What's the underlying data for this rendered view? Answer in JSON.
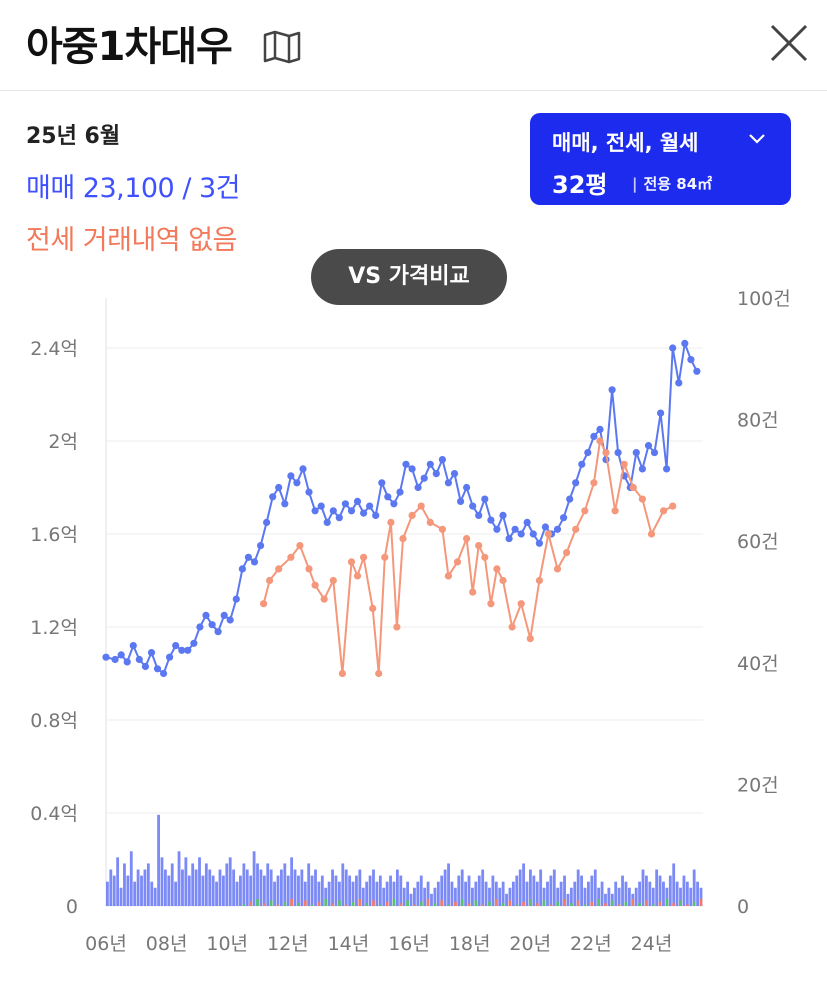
{
  "header": {
    "title": "아중1차대우",
    "map_icon": "map-icon",
    "close_icon": "close-icon"
  },
  "summary": {
    "period": "25년 6월",
    "sale": "매매 23,100 / 3건",
    "jeonse": "전세 거래내역 없음"
  },
  "filter": {
    "types": "매매, 전세, 월세",
    "size": "32평",
    "area": "전용 84㎡"
  },
  "vs_button": "VS 가격비교",
  "colors": {
    "sale": "#5b78f0",
    "jeonse": "#f4977b",
    "sale_bar": "#6d7df5",
    "jeonse_bar": "#f07c6a",
    "wolse_bar": "#5cc070",
    "accent": "#1d2bef"
  },
  "chart_data": {
    "type": "line",
    "x_labels": [
      "06년",
      "08년",
      "10년",
      "12년",
      "14년",
      "16년",
      "18년",
      "20년",
      "22년",
      "24년"
    ],
    "x_range": [
      2006,
      2025.7
    ],
    "y_left": {
      "ticks": [
        "0",
        "0.4억",
        "0.8억",
        "1.2억",
        "1.6억",
        "2억",
        "2.4억"
      ],
      "values": [
        0,
        0.4,
        0.8,
        1.2,
        1.6,
        2.0,
        2.4
      ],
      "range": [
        0,
        2.4
      ]
    },
    "y_right": {
      "ticks": [
        "0",
        "20건",
        "40건",
        "60건",
        "80건",
        "100건"
      ],
      "values": [
        0,
        20,
        40,
        60,
        80,
        100
      ],
      "range": [
        0,
        100
      ]
    },
    "series": [
      {
        "key": "sale",
        "points": [
          [
            2006.0,
            1.07
          ],
          [
            2006.3,
            1.06
          ],
          [
            2006.5,
            1.08
          ],
          [
            2006.7,
            1.05
          ],
          [
            2006.9,
            1.12
          ],
          [
            2007.1,
            1.06
          ],
          [
            2007.3,
            1.03
          ],
          [
            2007.5,
            1.09
          ],
          [
            2007.7,
            1.02
          ],
          [
            2007.9,
            1.0
          ],
          [
            2008.1,
            1.07
          ],
          [
            2008.3,
            1.12
          ],
          [
            2008.5,
            1.1
          ],
          [
            2008.7,
            1.1
          ],
          [
            2008.9,
            1.13
          ],
          [
            2009.1,
            1.2
          ],
          [
            2009.3,
            1.25
          ],
          [
            2009.5,
            1.21
          ],
          [
            2009.7,
            1.18
          ],
          [
            2009.9,
            1.25
          ],
          [
            2010.1,
            1.23
          ],
          [
            2010.3,
            1.32
          ],
          [
            2010.5,
            1.45
          ],
          [
            2010.7,
            1.5
          ],
          [
            2010.9,
            1.48
          ],
          [
            2011.1,
            1.55
          ],
          [
            2011.3,
            1.65
          ],
          [
            2011.5,
            1.76
          ],
          [
            2011.7,
            1.8
          ],
          [
            2011.9,
            1.73
          ],
          [
            2012.1,
            1.85
          ],
          [
            2012.3,
            1.82
          ],
          [
            2012.5,
            1.88
          ],
          [
            2012.7,
            1.78
          ],
          [
            2012.9,
            1.7
          ],
          [
            2013.1,
            1.72
          ],
          [
            2013.3,
            1.65
          ],
          [
            2013.5,
            1.7
          ],
          [
            2013.7,
            1.67
          ],
          [
            2013.9,
            1.73
          ],
          [
            2014.1,
            1.7
          ],
          [
            2014.3,
            1.74
          ],
          [
            2014.5,
            1.69
          ],
          [
            2014.7,
            1.72
          ],
          [
            2014.9,
            1.68
          ],
          [
            2015.1,
            1.82
          ],
          [
            2015.3,
            1.76
          ],
          [
            2015.5,
            1.73
          ],
          [
            2015.7,
            1.78
          ],
          [
            2015.9,
            1.9
          ],
          [
            2016.1,
            1.88
          ],
          [
            2016.3,
            1.8
          ],
          [
            2016.5,
            1.84
          ],
          [
            2016.7,
            1.9
          ],
          [
            2016.9,
            1.86
          ],
          [
            2017.1,
            1.92
          ],
          [
            2017.3,
            1.82
          ],
          [
            2017.5,
            1.86
          ],
          [
            2017.7,
            1.74
          ],
          [
            2017.9,
            1.8
          ],
          [
            2018.1,
            1.72
          ],
          [
            2018.3,
            1.68
          ],
          [
            2018.5,
            1.75
          ],
          [
            2018.7,
            1.66
          ],
          [
            2018.9,
            1.62
          ],
          [
            2019.1,
            1.68
          ],
          [
            2019.3,
            1.58
          ],
          [
            2019.5,
            1.62
          ],
          [
            2019.7,
            1.6
          ],
          [
            2019.9,
            1.65
          ],
          [
            2020.1,
            1.6
          ],
          [
            2020.3,
            1.56
          ],
          [
            2020.5,
            1.63
          ],
          [
            2020.7,
            1.6
          ],
          [
            2020.9,
            1.62
          ],
          [
            2021.1,
            1.67
          ],
          [
            2021.3,
            1.75
          ],
          [
            2021.5,
            1.82
          ],
          [
            2021.7,
            1.9
          ],
          [
            2021.9,
            1.95
          ],
          [
            2022.1,
            2.02
          ],
          [
            2022.3,
            2.05
          ],
          [
            2022.5,
            1.92
          ],
          [
            2022.7,
            2.22
          ],
          [
            2022.9,
            1.95
          ],
          [
            2023.1,
            1.85
          ],
          [
            2023.3,
            1.8
          ],
          [
            2023.5,
            1.95
          ],
          [
            2023.7,
            1.88
          ],
          [
            2023.9,
            1.98
          ],
          [
            2024.1,
            1.95
          ],
          [
            2024.3,
            2.12
          ],
          [
            2024.5,
            1.88
          ],
          [
            2024.7,
            2.4
          ],
          [
            2024.9,
            2.25
          ],
          [
            2025.1,
            2.42
          ],
          [
            2025.3,
            2.35
          ],
          [
            2025.5,
            2.3
          ]
        ]
      },
      {
        "key": "jeonse",
        "points": [
          [
            2011.2,
            1.3
          ],
          [
            2011.4,
            1.4
          ],
          [
            2011.7,
            1.45
          ],
          [
            2012.1,
            1.5
          ],
          [
            2012.4,
            1.55
          ],
          [
            2012.7,
            1.45
          ],
          [
            2012.9,
            1.38
          ],
          [
            2013.2,
            1.32
          ],
          [
            2013.5,
            1.4
          ],
          [
            2013.8,
            1.0
          ],
          [
            2014.1,
            1.48
          ],
          [
            2014.3,
            1.42
          ],
          [
            2014.5,
            1.5
          ],
          [
            2014.8,
            1.28
          ],
          [
            2015.0,
            1.0
          ],
          [
            2015.2,
            1.5
          ],
          [
            2015.4,
            1.65
          ],
          [
            2015.6,
            1.2
          ],
          [
            2015.8,
            1.58
          ],
          [
            2016.1,
            1.68
          ],
          [
            2016.4,
            1.72
          ],
          [
            2016.7,
            1.65
          ],
          [
            2017.1,
            1.62
          ],
          [
            2017.3,
            1.42
          ],
          [
            2017.6,
            1.48
          ],
          [
            2017.9,
            1.58
          ],
          [
            2018.1,
            1.35
          ],
          [
            2018.3,
            1.55
          ],
          [
            2018.5,
            1.5
          ],
          [
            2018.7,
            1.3
          ],
          [
            2018.9,
            1.45
          ],
          [
            2019.1,
            1.4
          ],
          [
            2019.4,
            1.2
          ],
          [
            2019.7,
            1.3
          ],
          [
            2020.0,
            1.15
          ],
          [
            2020.3,
            1.4
          ],
          [
            2020.6,
            1.6
          ],
          [
            2020.9,
            1.45
          ],
          [
            2021.2,
            1.52
          ],
          [
            2021.5,
            1.62
          ],
          [
            2021.8,
            1.7
          ],
          [
            2022.1,
            1.82
          ],
          [
            2022.3,
            2.0
          ],
          [
            2022.5,
            1.95
          ],
          [
            2022.8,
            1.7
          ],
          [
            2023.1,
            1.9
          ],
          [
            2023.4,
            1.8
          ],
          [
            2023.7,
            1.75
          ],
          [
            2024.0,
            1.6
          ],
          [
            2024.4,
            1.7
          ],
          [
            2024.7,
            1.72
          ]
        ]
      }
    ],
    "volume_bars": [
      4,
      6,
      5,
      8,
      3,
      7,
      5,
      9,
      4,
      6,
      5,
      6,
      7,
      4,
      3,
      15,
      8,
      6,
      5,
      7,
      4,
      9,
      6,
      8,
      5,
      7,
      6,
      8,
      5,
      7,
      6,
      5,
      4,
      6,
      5,
      7,
      8,
      6,
      4,
      5,
      7,
      6,
      5,
      9,
      7,
      6,
      5,
      7,
      6,
      4,
      5,
      6,
      7,
      5,
      8,
      6,
      5,
      6,
      4,
      7,
      5,
      6,
      4,
      5,
      3,
      4,
      6,
      5,
      4,
      7,
      6,
      5,
      4,
      5,
      6,
      3,
      4,
      5,
      6,
      4,
      5,
      3,
      4,
      5,
      4,
      6,
      5,
      3,
      4,
      2,
      3,
      4,
      5,
      3,
      4,
      2,
      3,
      4,
      5,
      6,
      7,
      4,
      3,
      5,
      6,
      4,
      5,
      3,
      4,
      5,
      6,
      4,
      3,
      5,
      4,
      3,
      4,
      2,
      3,
      4,
      5,
      6,
      7,
      4,
      6,
      5,
      4,
      6,
      3,
      4,
      5,
      6,
      3,
      4,
      5,
      2,
      3,
      4,
      6,
      5,
      3,
      4,
      5,
      6,
      3,
      4,
      2,
      3,
      2,
      4,
      3,
      5,
      4,
      3,
      2,
      3,
      4,
      6,
      5,
      4,
      3,
      6,
      5,
      4,
      3,
      5,
      7,
      4,
      3,
      5,
      4,
      3,
      6,
      4,
      3
    ]
  }
}
